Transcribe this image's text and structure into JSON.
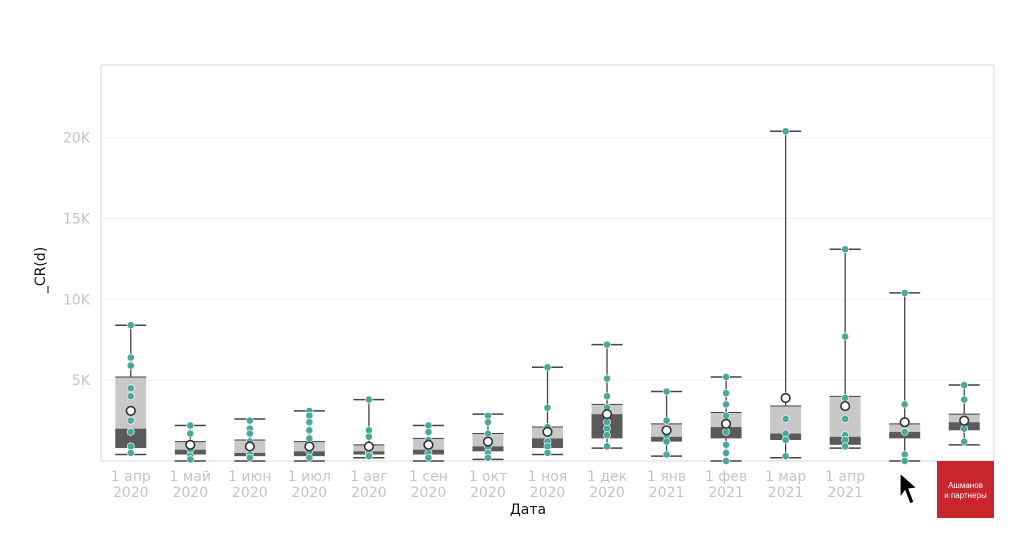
{
  "chart_data": {
    "type": "box",
    "xlabel": "Дата",
    "ylabel": "_CR(d)",
    "ylim": [
      0,
      24500
    ],
    "yticks": [
      5000,
      10000,
      15000,
      20000
    ],
    "ytick_labels": [
      "5K",
      "10K",
      "15K",
      "20K"
    ],
    "grid": true,
    "categories": [
      {
        "line1": "1 апр",
        "line2": "2020"
      },
      {
        "line1": "1 май",
        "line2": "2020"
      },
      {
        "line1": "1 июн",
        "line2": "2020"
      },
      {
        "line1": "1 июл",
        "line2": "2020"
      },
      {
        "line1": "1 авг",
        "line2": "2020"
      },
      {
        "line1": "1 сен",
        "line2": "2020"
      },
      {
        "line1": "1 окт",
        "line2": "2020"
      },
      {
        "line1": "1 ноя",
        "line2": "2020"
      },
      {
        "line1": "1 дек",
        "line2": "2020"
      },
      {
        "line1": "1 янв",
        "line2": "2021"
      },
      {
        "line1": "1 фев",
        "line2": "2021"
      },
      {
        "line1": "1 мар",
        "line2": "2021"
      },
      {
        "line1": "1 апр",
        "line2": "2021"
      },
      {
        "line1": "",
        "line2": ""
      },
      {
        "line1": "",
        "line2": ""
      }
    ],
    "boxes": [
      {
        "min": 400,
        "q1": 800,
        "median": 2000,
        "q3": 5200,
        "max": 8400,
        "mean": 3100,
        "points": [
          8400,
          6400,
          5900,
          4500,
          4000,
          2500,
          1800,
          900,
          500
        ]
      },
      {
        "min": 0,
        "q1": 400,
        "median": 700,
        "q3": 1200,
        "max": 2200,
        "mean": 1000,
        "points": [
          2200,
          1700,
          1100,
          700,
          300,
          100
        ]
      },
      {
        "min": 0,
        "q1": 300,
        "median": 500,
        "q3": 1300,
        "max": 2600,
        "mean": 900,
        "points": [
          2500,
          2000,
          1700,
          1200,
          800,
          400,
          200
        ]
      },
      {
        "min": 0,
        "q1": 300,
        "median": 600,
        "q3": 1200,
        "max": 3100,
        "mean": 900,
        "points": [
          3100,
          2800,
          2400,
          1900,
          1400,
          1000,
          600,
          200
        ]
      },
      {
        "min": 200,
        "q1": 400,
        "median": 600,
        "q3": 1000,
        "max": 3800,
        "mean": 900,
        "points": [
          3800,
          1900,
          1500,
          900,
          500,
          300
        ]
      },
      {
        "min": 0,
        "q1": 400,
        "median": 700,
        "q3": 1400,
        "max": 2200,
        "mean": 1000,
        "points": [
          2200,
          1800,
          1300,
          900,
          500,
          200
        ]
      },
      {
        "min": 100,
        "q1": 600,
        "median": 900,
        "q3": 1700,
        "max": 2900,
        "mean": 1200,
        "points": [
          2800,
          2400,
          1700,
          1300,
          900,
          500,
          200
        ]
      },
      {
        "min": 400,
        "q1": 800,
        "median": 1400,
        "q3": 2100,
        "max": 5800,
        "mean": 1800,
        "points": [
          5800,
          3300,
          2100,
          1800,
          1200,
          900,
          500
        ]
      },
      {
        "min": 800,
        "q1": 1400,
        "median": 2900,
        "q3": 3500,
        "max": 7200,
        "mean": 2900,
        "points": [
          7200,
          5100,
          4000,
          3300,
          2400,
          2000,
          1600,
          900
        ]
      },
      {
        "min": 300,
        "q1": 1200,
        "median": 1500,
        "q3": 2300,
        "max": 4300,
        "mean": 1900,
        "points": [
          4300,
          2500,
          2000,
          1600,
          1200,
          400
        ]
      },
      {
        "min": 0,
        "q1": 1400,
        "median": 2100,
        "q3": 3000,
        "max": 5200,
        "mean": 2300,
        "points": [
          5200,
          4200,
          3500,
          2800,
          2300,
          1800,
          1000,
          500,
          0
        ]
      },
      {
        "min": 200,
        "q1": 1300,
        "median": 1700,
        "q3": 3400,
        "max": 20400,
        "mean": 3900,
        "points": [
          20400,
          4000,
          2600,
          1700,
          1300,
          300
        ]
      },
      {
        "min": 800,
        "q1": 1000,
        "median": 1500,
        "q3": 4000,
        "max": 13100,
        "mean": 3400,
        "points": [
          13100,
          7700,
          3900,
          2600,
          1600,
          1300,
          900
        ]
      },
      {
        "min": 0,
        "q1": 1400,
        "median": 1800,
        "q3": 2300,
        "max": 10400,
        "mean": 2400,
        "points": [
          10400,
          3500,
          1800,
          400,
          0
        ]
      },
      {
        "min": 1000,
        "q1": 1900,
        "median": 2400,
        "q3": 2900,
        "max": 4700,
        "mean": 2500,
        "points": [
          4700,
          3800,
          2500,
          2000,
          1200
        ]
      }
    ],
    "colors": {
      "upper_box": "#c8c8c8",
      "lower_box": "#5a5a5a",
      "whisker": "#444444",
      "point": "#4aa89b",
      "mean_fill": "#ffffff",
      "mean_stroke": "#333333",
      "grid": "#f2f2f2",
      "frame": "#d9d9d9"
    }
  },
  "overlays": {
    "cursor_icon": "arrow-cursor-icon",
    "logo": {
      "line1": "Ашманов",
      "line2": "и партнеры",
      "color": "#c8252c"
    }
  }
}
